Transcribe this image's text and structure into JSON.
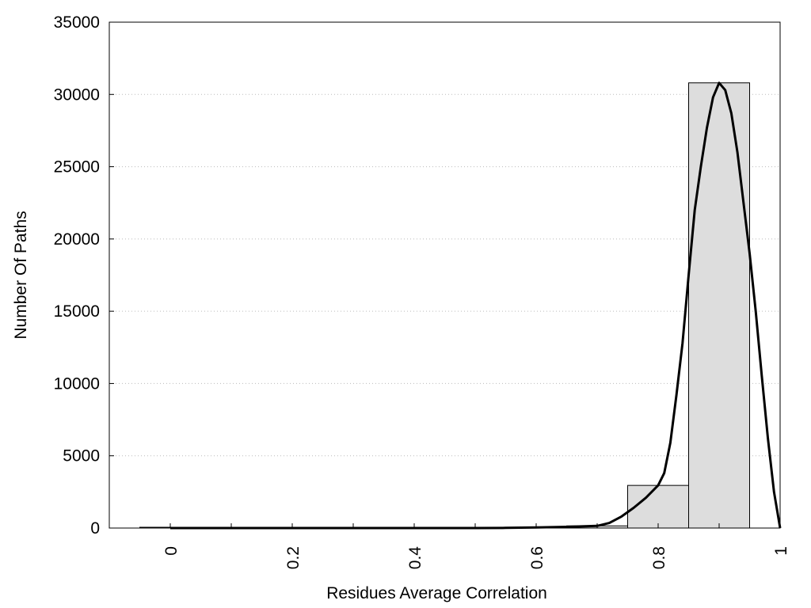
{
  "chart_data": {
    "type": "bar",
    "xlabel": "Residues Average Correlation",
    "ylabel": "Number Of Paths",
    "xlim": [
      -0.1,
      1.0
    ],
    "ylim": [
      0,
      35000
    ],
    "x_ticks": [
      "0",
      "0.2",
      "0.4",
      "0.6",
      "0.8",
      "1"
    ],
    "y_ticks": [
      "0",
      "5000",
      "10000",
      "15000",
      "20000",
      "25000",
      "30000",
      "35000"
    ],
    "grid": "horizontal dotted",
    "bin_width": 0.1,
    "bins": [
      {
        "center": 0.0,
        "value": 0
      },
      {
        "center": 0.1,
        "value": 0
      },
      {
        "center": 0.2,
        "value": 0
      },
      {
        "center": 0.3,
        "value": 0
      },
      {
        "center": 0.4,
        "value": 0
      },
      {
        "center": 0.5,
        "value": 0
      },
      {
        "center": 0.6,
        "value": 20
      },
      {
        "center": 0.7,
        "value": 150
      },
      {
        "center": 0.8,
        "value": 2950
      },
      {
        "center": 0.9,
        "value": 30800
      }
    ],
    "fit_curve": {
      "x": [
        0.0,
        0.5,
        0.55,
        0.6,
        0.65,
        0.7,
        0.72,
        0.74,
        0.76,
        0.78,
        0.8,
        0.81,
        0.82,
        0.83,
        0.84,
        0.85,
        0.86,
        0.87,
        0.88,
        0.89,
        0.9,
        0.91,
        0.92,
        0.93,
        0.94,
        0.95,
        0.96,
        0.97,
        0.98,
        0.99,
        1.0
      ],
      "y": [
        0,
        0,
        10,
        40,
        80,
        150,
        350,
        800,
        1400,
        2100,
        2950,
        3800,
        5900,
        9200,
        12800,
        17500,
        22000,
        25000,
        27700,
        29800,
        30800,
        30300,
        28700,
        26000,
        22500,
        19000,
        15000,
        10500,
        6200,
        2500,
        0
      ]
    },
    "bar_color": "#dddddd",
    "curve_color": "#000000"
  }
}
